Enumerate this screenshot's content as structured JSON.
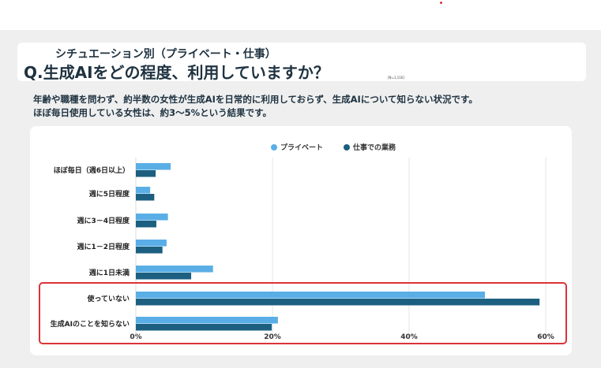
{
  "header": {
    "subtitle": "シチュエーション別（プライベート・仕事）",
    "title": "Q.生成AIをどの程度、利用していますか？",
    "sample": "[N=1,116]"
  },
  "description": [
    "年齢や職種を問わず、約半数の女性が生成AIを日常的に利用しておらず、生成AIについて知らない状況です。",
    "ほぼ毎日使用している女性は、約3〜5%という結果です。"
  ],
  "chart_data": {
    "type": "bar",
    "orientation": "horizontal",
    "categories": [
      "ほぼ毎日（週6日以上）",
      "週に5日程度",
      "週に3－4日程度",
      "週に1－2日程度",
      "週に1日未満",
      "使っていない",
      "生成AIのことを知らない"
    ],
    "series": [
      {
        "name": "プライベート",
        "color": "#5aaee6",
        "values": [
          5.1,
          2.1,
          4.7,
          4.5,
          11.3,
          51.1,
          20.8
        ]
      },
      {
        "name": "仕事での業務",
        "color": "#1c5f80",
        "values": [
          2.9,
          2.7,
          3.0,
          3.9,
          8.1,
          59.1,
          19.9
        ]
      }
    ],
    "xlim": [
      0,
      60
    ],
    "xticks": [
      "0%",
      "20%",
      "40%",
      "60%"
    ],
    "legend": "top-center",
    "grid": true,
    "highlight": {
      "categories": [
        "使っていない",
        "生成AIのことを知らない"
      ],
      "color": "#d9343a"
    }
  }
}
